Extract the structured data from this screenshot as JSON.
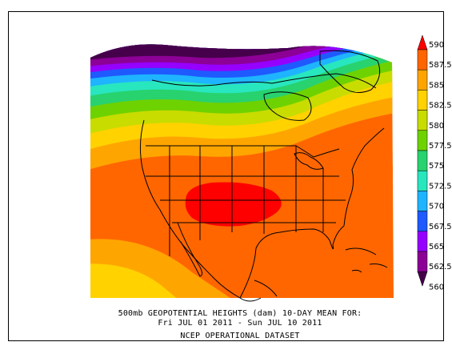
{
  "map": {
    "title_line1": "500mb GEOPOTENTIAL HEIGHTS (dam)   10-DAY MEAN FOR:",
    "title_line2": "Fri JUL 01 2011 - Sun JUL 10 2011",
    "title_line3": "NCEP OPERATIONAL DATASET",
    "field": "500mb geopotential heights",
    "units": "dam",
    "region": "North America"
  },
  "colorbar": {
    "levels": [
      {
        "label": "590",
        "color": "#ff0000"
      },
      {
        "label": "587.5",
        "color": "#ff6600"
      },
      {
        "label": "585",
        "color": "#ffa500"
      },
      {
        "label": "582.5",
        "color": "#ffd200"
      },
      {
        "label": "580",
        "color": "#c8dc00"
      },
      {
        "label": "577.5",
        "color": "#6ed200"
      },
      {
        "label": "575",
        "color": "#28d26e"
      },
      {
        "label": "572.5",
        "color": "#28e6be"
      },
      {
        "label": "570",
        "color": "#1eb4ff"
      },
      {
        "label": "567.5",
        "color": "#1e5aff"
      },
      {
        "label": "565",
        "color": "#9600ff"
      },
      {
        "label": "562.5",
        "color": "#8c0096"
      },
      {
        "label": "560",
        "color": "#46004b"
      }
    ]
  }
}
